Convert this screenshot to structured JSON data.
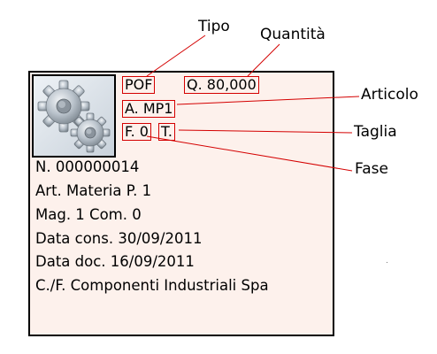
{
  "labels": {
    "tipo": "Tipo",
    "quantita": "Quantità",
    "articolo": "Articolo",
    "taglia": "Taglia",
    "fase": "Fase"
  },
  "card": {
    "icon": "gears-icon",
    "fields": {
      "tipo": "POF",
      "quantita": "Q. 80,000",
      "articolo": "A. MP1",
      "fase": "F. 0",
      "taglia": "T."
    },
    "lines": [
      "N. 000000014",
      "Art. Materia P. 1",
      "Mag. 1 Com. 0",
      "Data cons. 30/09/2011",
      "Data doc. 16/09/2011",
      "C./F. Componenti Industriali Spa"
    ]
  },
  "colors": {
    "card_background": "#fdf1ec",
    "highlight_border": "#d40000",
    "leader_line": "#d40000"
  }
}
